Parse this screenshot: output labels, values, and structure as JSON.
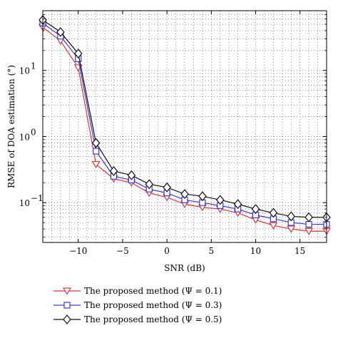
{
  "chart_data": {
    "type": "line",
    "xlabel": "SNR (dB)",
    "ylabel": "RMSE of DOA estimation (°)",
    "xlim": [
      -14,
      18
    ],
    "ylim": [
      0.025,
      80
    ],
    "yscale": "log",
    "grid": true,
    "legend_position": "bottom",
    "x_ticks": [
      -10,
      -5,
      0,
      5,
      10,
      15
    ],
    "x_tick_labels": [
      "−10",
      "−5",
      "0",
      "5",
      "10",
      "15"
    ],
    "y_ticks": [
      0.1,
      1,
      10
    ],
    "y_tick_labels": [
      "10",
      "10",
      "10"
    ],
    "y_tick_exponents": [
      "−1",
      "0",
      "1"
    ],
    "x": [
      -14,
      -12,
      -10,
      -8,
      -6,
      -4,
      -2,
      0,
      2,
      4,
      6,
      8,
      10,
      12,
      14,
      16,
      18
    ],
    "series": [
      {
        "name": "The proposed method (Ψ = 0.1)",
        "color": "#d63a3a",
        "marker": "triangle-down",
        "values": [
          45,
          28,
          11,
          0.38,
          0.23,
          0.2,
          0.14,
          0.12,
          0.095,
          0.085,
          0.08,
          0.07,
          0.055,
          0.045,
          0.04,
          0.037,
          0.037
        ]
      },
      {
        "name": "The proposed method (Ψ = 0.3)",
        "color": "#3a3ad6",
        "marker": "square",
        "values": [
          52,
          33,
          15,
          0.6,
          0.25,
          0.22,
          0.16,
          0.14,
          0.11,
          0.1,
          0.09,
          0.08,
          0.065,
          0.057,
          0.05,
          0.047,
          0.047
        ]
      },
      {
        "name": "The proposed method (Ψ = 0.5)",
        "color": "#111111",
        "marker": "diamond",
        "values": [
          58,
          38,
          18,
          0.8,
          0.3,
          0.26,
          0.19,
          0.17,
          0.135,
          0.125,
          0.11,
          0.095,
          0.08,
          0.07,
          0.062,
          0.06,
          0.06
        ]
      }
    ]
  }
}
